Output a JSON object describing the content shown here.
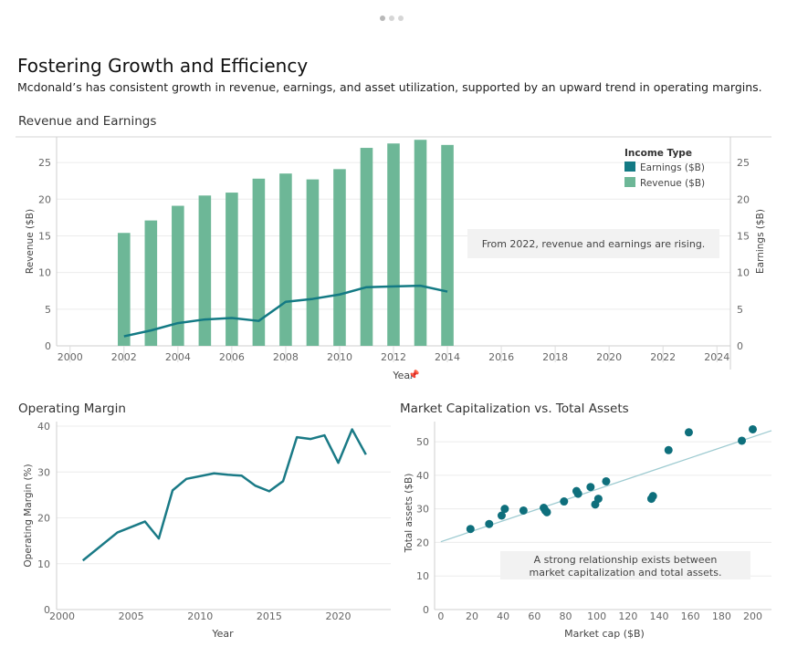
{
  "header": {
    "title": "Fostering Growth and Efficiency",
    "subtitle": "Mcdonald’s has consistent growth in revenue, earnings, and asset utilization, supported by an upward trend in operating margins."
  },
  "colors": {
    "revenue": "#6db797",
    "earnings": "#137a84",
    "margin_line": "#1a7a86",
    "scatter_point": "#0e6f7c",
    "trend_line": "#9ecbd1",
    "annotation_bg": "#f2f2f2"
  },
  "chart_data": [
    {
      "id": "revenue-earnings",
      "type": "bar",
      "title": "Revenue and Earnings",
      "xlabel": "Year",
      "ylabel": "Revenue ($B)",
      "y2label": "Earnings ($B)",
      "xlim": [
        1999.5,
        2024.5
      ],
      "ylim": [
        0,
        28.5
      ],
      "x_ticks": [
        2000,
        2002,
        2004,
        2006,
        2008,
        2010,
        2012,
        2014,
        2016,
        2018,
        2020,
        2022,
        2024
      ],
      "y_ticks": [
        0,
        5,
        10,
        15,
        20,
        25
      ],
      "y2_ticks": [
        0,
        5,
        10,
        15,
        20,
        25
      ],
      "legend": {
        "title": "Income Type",
        "position": "top-right"
      },
      "x": [
        2002,
        2003,
        2004,
        2005,
        2006,
        2007,
        2008,
        2009,
        2010,
        2011,
        2012,
        2013,
        2014
      ],
      "series": [
        {
          "name": "Revenue ($B)",
          "type": "bar",
          "values": [
            15.4,
            17.1,
            19.1,
            20.5,
            20.9,
            22.8,
            23.5,
            22.7,
            24.1,
            27.0,
            27.6,
            28.1,
            27.4
          ]
        },
        {
          "name": "Earnings ($B)",
          "type": "line",
          "values": [
            1.3,
            2.1,
            3.1,
            3.6,
            3.8,
            3.4,
            6.0,
            6.4,
            7.0,
            8.0,
            8.1,
            8.2,
            7.4
          ]
        }
      ],
      "annotation": "From 2022, revenue and earnings are rising."
    },
    {
      "id": "operating-margin",
      "type": "line",
      "title": "Operating Margin",
      "xlabel": "Year",
      "ylabel": "Operating Margin (%)",
      "xlim": [
        1999.6,
        2023.8
      ],
      "ylim": [
        0,
        41
      ],
      "x_ticks": [
        2000,
        2005,
        2010,
        2015,
        2020
      ],
      "y_ticks": [
        0,
        10,
        20,
        30,
        40
      ],
      "x": [
        2001.5,
        2004,
        2006,
        2007,
        2008,
        2009,
        2011,
        2012,
        2013,
        2014,
        2015,
        2016,
        2017,
        2018,
        2019,
        2020,
        2021,
        2022
      ],
      "series": [
        {
          "name": "",
          "values": [
            10.7,
            16.8,
            19.2,
            15.5,
            26.0,
            28.5,
            29.7,
            29.4,
            29.2,
            27.0,
            25.8,
            28.0,
            37.6,
            37.2,
            38.0,
            32.0,
            39.3,
            33.8
          ]
        }
      ]
    },
    {
      "id": "market-cap-assets",
      "type": "scatter",
      "title": "Market Capitalization vs. Total Assets",
      "xlabel": "Market cap ($B)",
      "ylabel": "Total assets ($B)",
      "xlim": [
        -4,
        212
      ],
      "ylim": [
        0,
        56
      ],
      "x_ticks": [
        0,
        20,
        40,
        60,
        80,
        100,
        120,
        140,
        160,
        180,
        200
      ],
      "y_ticks": [
        0,
        10,
        20,
        30,
        40,
        50
      ],
      "points": [
        [
          19,
          24
        ],
        [
          31,
          25.5
        ],
        [
          39,
          28
        ],
        [
          41,
          30
        ],
        [
          53,
          29.5
        ],
        [
          66,
          30.3
        ],
        [
          67,
          29.5
        ],
        [
          68,
          29
        ],
        [
          79,
          32.2
        ],
        [
          87,
          35.3
        ],
        [
          88,
          34.5
        ],
        [
          96,
          36.5
        ],
        [
          99,
          31.3
        ],
        [
          101,
          33
        ],
        [
          106,
          38.2
        ],
        [
          135,
          33
        ],
        [
          136,
          33.8
        ],
        [
          146,
          47.5
        ],
        [
          159,
          52.8
        ],
        [
          193,
          50.3
        ],
        [
          200,
          53.7
        ]
      ],
      "trendline": {
        "x": [
          0,
          212
        ],
        "y": [
          20.2,
          53.3
        ]
      },
      "annotation": "A strong relationship exists between market capitalization and total assets."
    }
  ]
}
